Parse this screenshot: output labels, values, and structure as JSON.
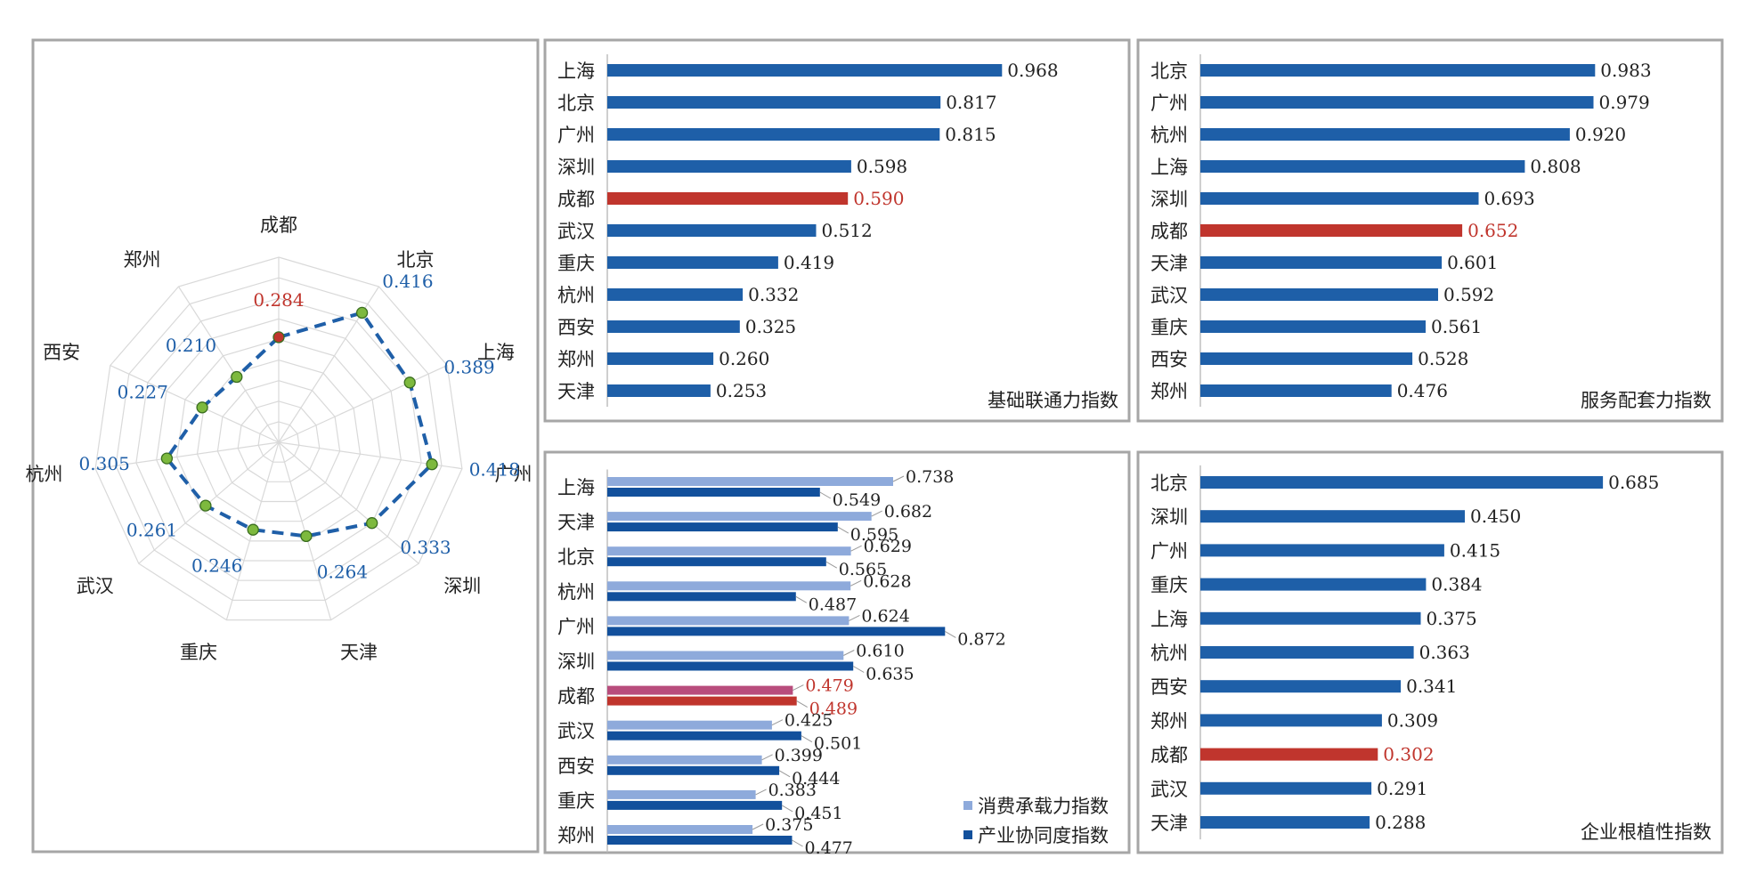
{
  "colors": {
    "bar": "#1E5FA8",
    "highlight": "#C0352D",
    "consumption": "#8EAADB",
    "consumption_highlight": "#B84C7C",
    "industry": "#12509C",
    "radar_line": "#1F5FA8",
    "radar_dot": "#7DB93E",
    "radar_dot_highlight": "#C0352D",
    "value_text": "#1F5FA8",
    "highlight_text": "#C0352D",
    "grid": "#D9D9D9",
    "frame": "#A6A6A6"
  },
  "chart_data": [
    {
      "type": "radar",
      "categories": [
        "成都",
        "北京",
        "上海",
        "广州",
        "深圳",
        "天津",
        "重庆",
        "武汉",
        "杭州",
        "西安",
        "郑州"
      ],
      "values": [
        0.284,
        0.416,
        0.389,
        0.418,
        0.333,
        0.264,
        0.246,
        0.261,
        0.305,
        0.227,
        0.21
      ],
      "value_labels": [
        "0.284",
        "0.416",
        "0.389",
        "0.418",
        "0.333",
        "0.264",
        "0.246",
        "0.261",
        "0.305",
        "0.227",
        "0.210"
      ],
      "highlight": "成都",
      "rmax": 0.5,
      "grid": true
    },
    {
      "type": "bar",
      "orientation": "horizontal",
      "title": "基础联通力指数",
      "categories": [
        "上海",
        "北京",
        "广州",
        "深圳",
        "成都",
        "武汉",
        "重庆",
        "杭州",
        "西安",
        "郑州",
        "天津"
      ],
      "values": [
        0.968,
        0.817,
        0.815,
        0.598,
        0.59,
        0.512,
        0.419,
        0.332,
        0.325,
        0.26,
        0.253
      ],
      "value_labels": [
        "0.968",
        "0.817",
        "0.815",
        "0.598",
        "0.590",
        "0.512",
        "0.419",
        "0.332",
        "0.325",
        "0.260",
        "0.253"
      ],
      "highlight": "成都",
      "xlim": [
        0,
        1.0
      ]
    },
    {
      "type": "bar",
      "orientation": "horizontal",
      "title": "服务配套力指数",
      "categories": [
        "北京",
        "广州",
        "杭州",
        "上海",
        "深圳",
        "成都",
        "天津",
        "武汉",
        "重庆",
        "西安",
        "郑州"
      ],
      "values": [
        0.983,
        0.979,
        0.92,
        0.808,
        0.693,
        0.652,
        0.601,
        0.592,
        0.561,
        0.528,
        0.476
      ],
      "value_labels": [
        "0.983",
        "0.979",
        "0.920",
        "0.808",
        "0.693",
        "0.652",
        "0.601",
        "0.592",
        "0.561",
        "0.528",
        "0.476"
      ],
      "highlight": "成都",
      "xlim": [
        0,
        1.0
      ]
    },
    {
      "type": "bar",
      "orientation": "horizontal",
      "categories": [
        "上海",
        "天津",
        "北京",
        "杭州",
        "广州",
        "深圳",
        "成都",
        "武汉",
        "西安",
        "重庆",
        "郑州"
      ],
      "series": [
        {
          "name": "消费承载力指数",
          "values": [
            0.738,
            0.682,
            0.629,
            0.628,
            0.624,
            0.61,
            0.479,
            0.425,
            0.399,
            0.383,
            0.375
          ],
          "value_labels": [
            "0.738",
            "0.682",
            "0.629",
            "0.628",
            "0.624",
            "0.610",
            "0.479",
            "0.425",
            "0.399",
            "0.383",
            "0.375"
          ]
        },
        {
          "name": "产业协同度指数",
          "values": [
            0.549,
            0.595,
            0.565,
            0.487,
            0.872,
            0.635,
            0.489,
            0.501,
            0.444,
            0.451,
            0.477
          ],
          "value_labels": [
            "0.549",
            "0.595",
            "0.565",
            "0.487",
            "0.872",
            "0.635",
            "0.489",
            "0.501",
            "0.444",
            "0.451",
            "0.477"
          ]
        }
      ],
      "highlight": "成都",
      "legend": "bottom-right",
      "xlim": [
        0,
        1.0
      ]
    },
    {
      "type": "bar",
      "orientation": "horizontal",
      "title": "企业根植性指数",
      "categories": [
        "北京",
        "深圳",
        "广州",
        "重庆",
        "上海",
        "杭州",
        "西安",
        "郑州",
        "成都",
        "武汉",
        "天津"
      ],
      "values": [
        0.685,
        0.45,
        0.415,
        0.384,
        0.375,
        0.363,
        0.341,
        0.309,
        0.302,
        0.291,
        0.288
      ],
      "value_labels": [
        "0.685",
        "0.450",
        "0.415",
        "0.384",
        "0.375",
        "0.363",
        "0.341",
        "0.309",
        "0.302",
        "0.291",
        "0.288"
      ],
      "highlight": "成都",
      "xlim": [
        0,
        0.7
      ]
    }
  ]
}
